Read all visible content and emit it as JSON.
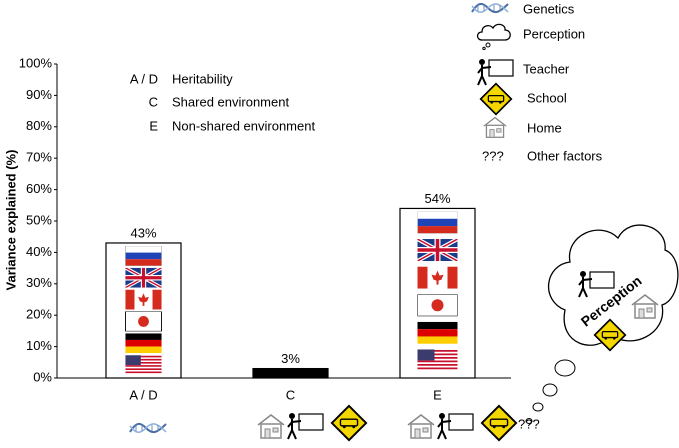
{
  "chart_data": {
    "type": "bar",
    "y_label": "Variance explained (%)",
    "categories": [
      "A / D",
      "C",
      "E"
    ],
    "values": [
      43,
      3,
      54
    ],
    "value_labels": [
      "43%",
      "3%",
      "54%"
    ],
    "colors": [
      "#ffffff",
      "#000000",
      "#ffffff"
    ],
    "ylim": [
      0,
      100
    ],
    "yticks": [
      {
        "value": 0,
        "label": "0%"
      },
      {
        "value": 10,
        "label": "10%"
      },
      {
        "value": 20,
        "label": "20%"
      },
      {
        "value": 30,
        "label": "30%"
      },
      {
        "value": 40,
        "label": "40%"
      },
      {
        "value": 50,
        "label": "50%"
      },
      {
        "value": 60,
        "label": "60%"
      },
      {
        "value": 70,
        "label": "70%"
      },
      {
        "value": 80,
        "label": "80%"
      },
      {
        "value": 90,
        "label": "90%"
      },
      {
        "value": 100,
        "label": "100%"
      }
    ],
    "components": [
      {
        "key": "A / D",
        "label": "Heritability"
      },
      {
        "key": "C",
        "label": "Shared environment"
      },
      {
        "key": "E",
        "label": "Non-shared environment"
      }
    ],
    "icon_legend": [
      {
        "label": "Genetics"
      },
      {
        "label": "Perception"
      },
      {
        "label": "Teacher"
      },
      {
        "label": "School"
      },
      {
        "label": "Home"
      },
      {
        "symbol": "???",
        "label": "Other factors"
      }
    ],
    "cloud_label": "Perception"
  }
}
